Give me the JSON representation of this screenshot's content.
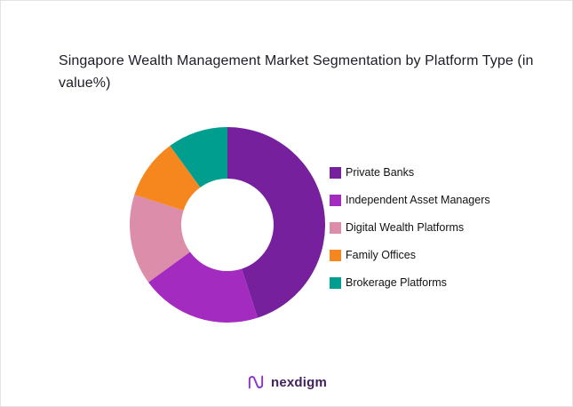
{
  "chart_data": {
    "type": "pie",
    "donut": true,
    "title": "Singapore Wealth Management Market Segmentation by Platform Type (in value%)",
    "legend_position": "right",
    "start_angle_deg": 0,
    "direction": "clockwise",
    "segments": [
      {
        "label": "Private Banks",
        "value": 45,
        "color": "#76209e"
      },
      {
        "label": "Independent Asset Managers",
        "value": 20,
        "color": "#a42bc0"
      },
      {
        "label": "Digital Wealth Platforms",
        "value": 15,
        "color": "#db8da9"
      },
      {
        "label": "Family Offices",
        "value": 10,
        "color": "#f6871f"
      },
      {
        "label": "Brokerage Platforms",
        "value": 10,
        "color": "#009e8f"
      }
    ]
  },
  "footer": {
    "logo_text": "nexdigm",
    "logo_icon": "nexdigm-n-wave-icon",
    "logo_color": "#8a36c9"
  }
}
